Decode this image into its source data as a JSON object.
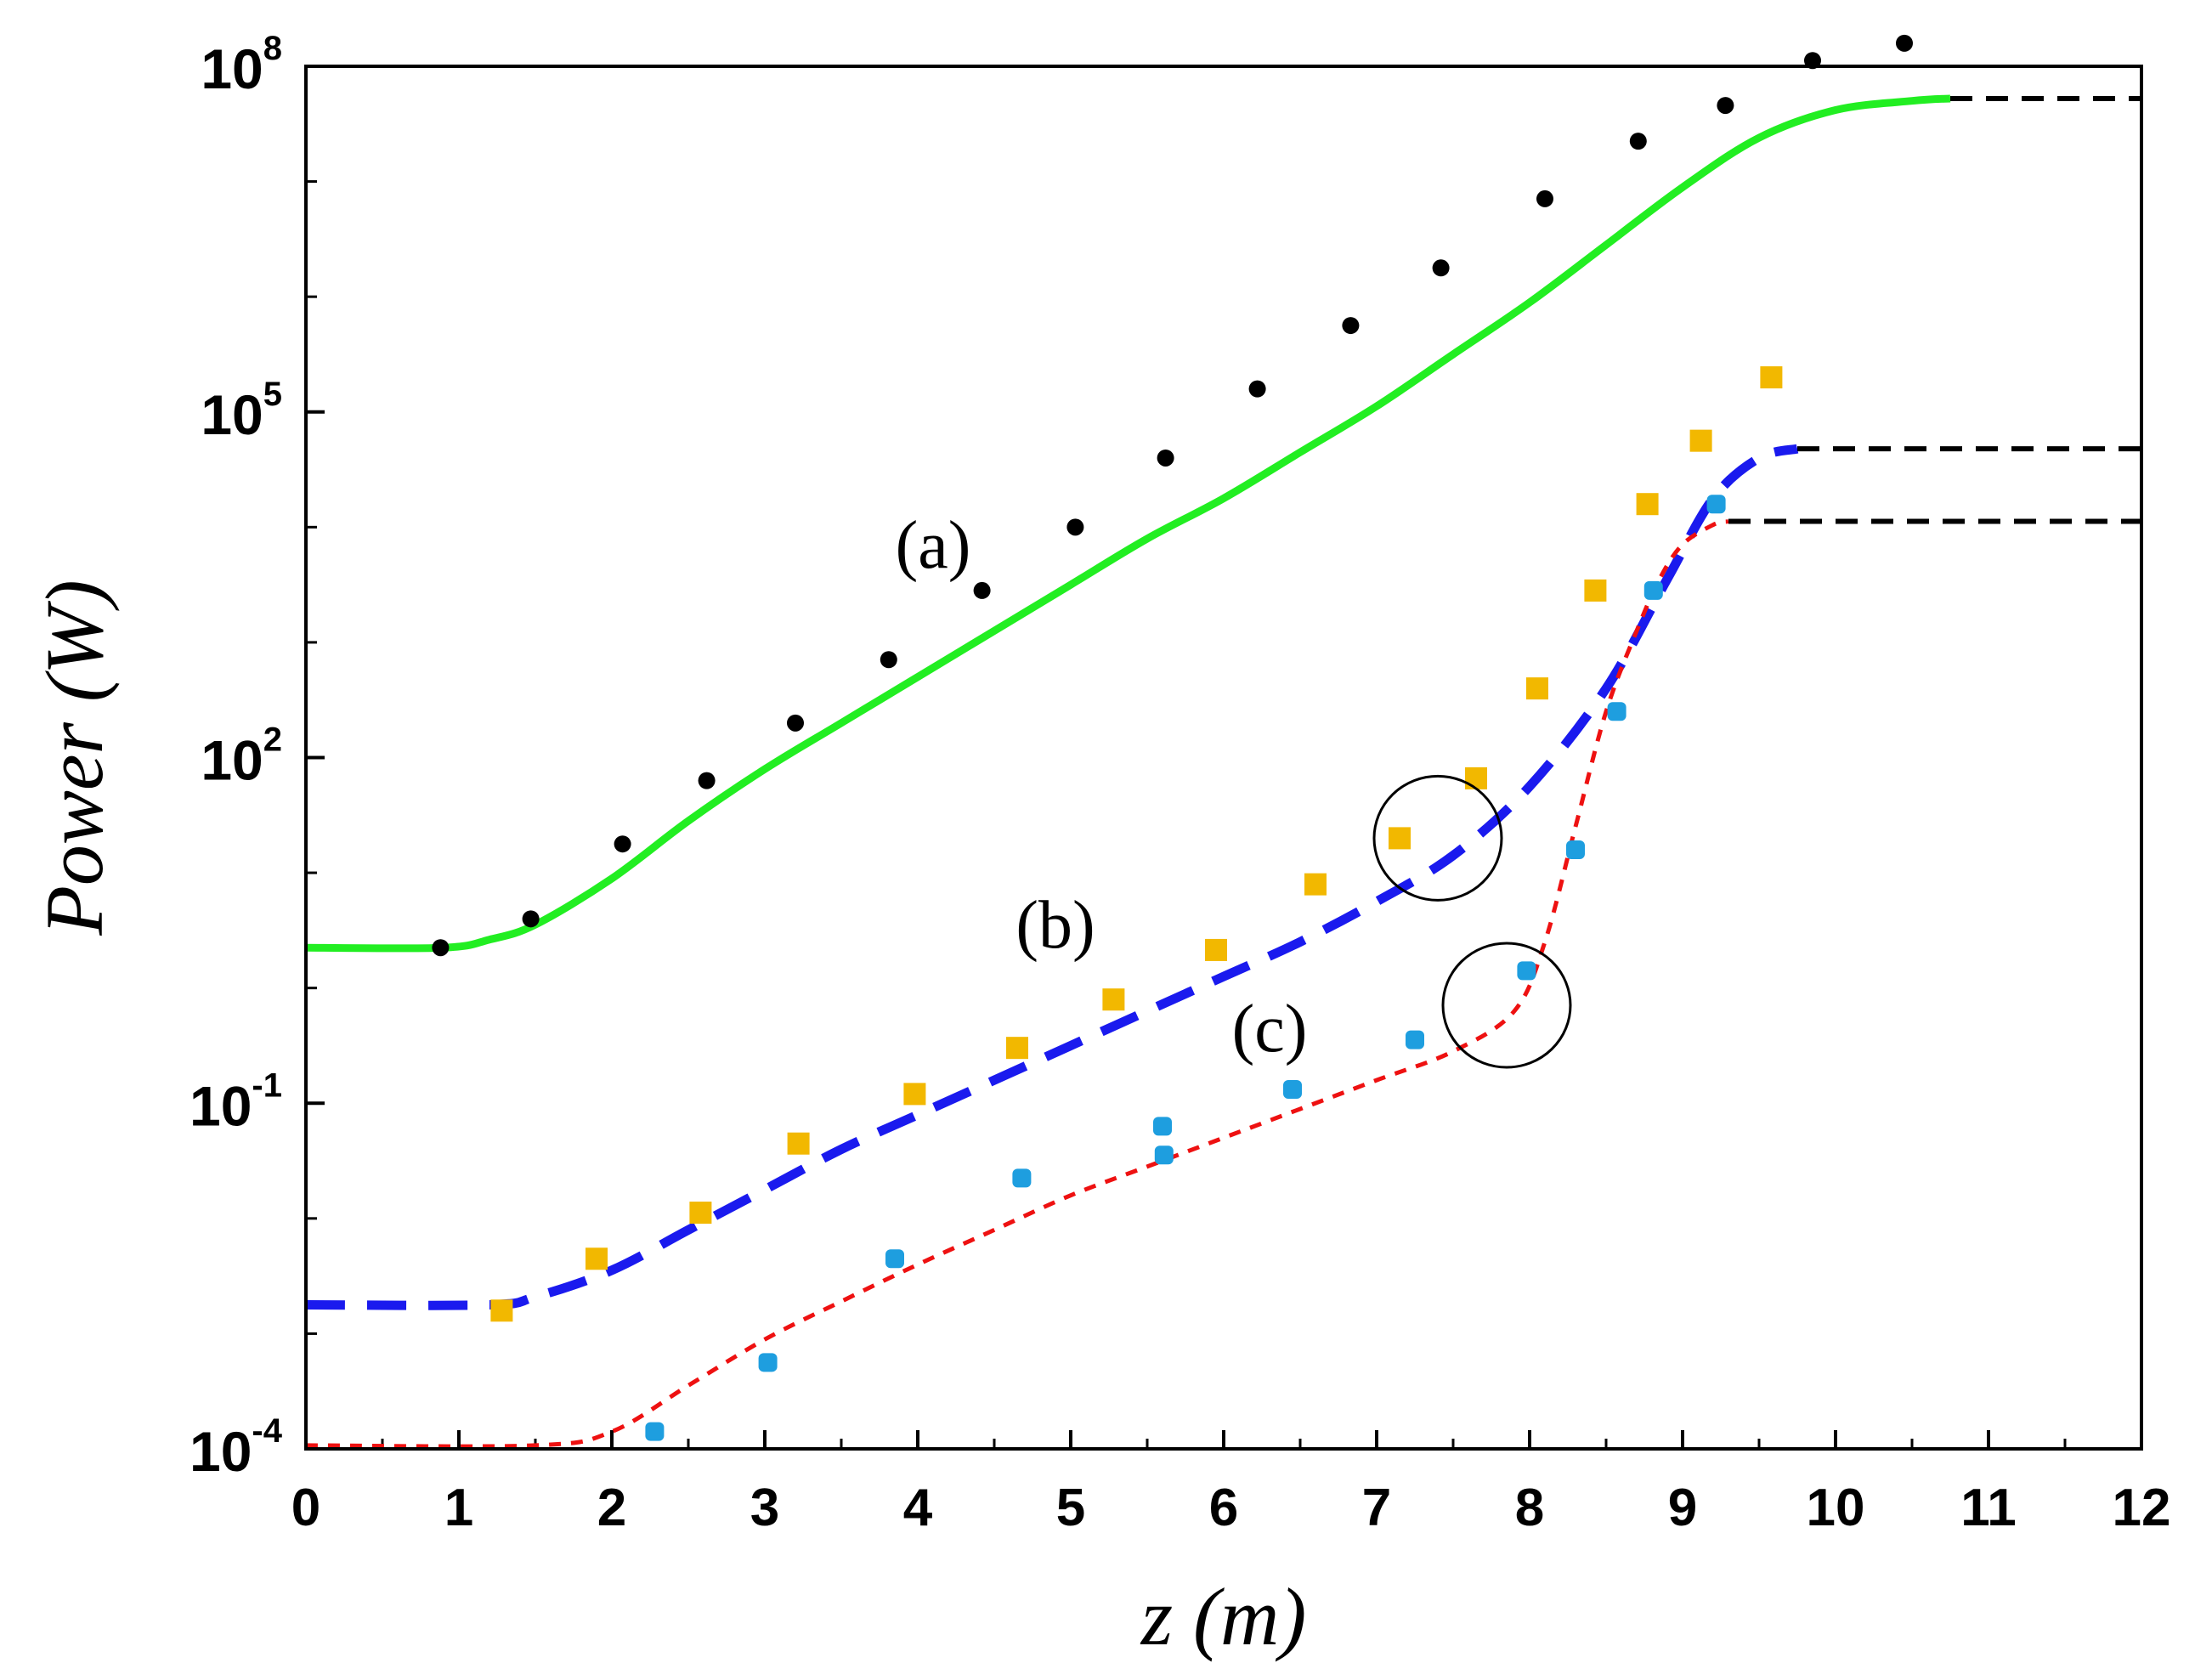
{
  "chart_data": {
    "type": "line",
    "xlabel": "z (m)",
    "ylabel": "Power (W)",
    "xlim": [
      0,
      12
    ],
    "ylim_log10": [
      -4,
      8
    ],
    "yscale": "log",
    "x_ticks": [
      0,
      1,
      2,
      3,
      4,
      5,
      6,
      7,
      8,
      9,
      10,
      11,
      12
    ],
    "y_ticks": [
      {
        "base": "10",
        "exp": "8",
        "value_log10": 8
      },
      {
        "base": "10",
        "exp": "5",
        "value_log10": 5
      },
      {
        "base": "10",
        "exp": "2",
        "value_log10": 2
      },
      {
        "base": "10",
        "exp": "-1",
        "value_log10": -1
      },
      {
        "base": "10",
        "exp": "-4",
        "value_log10": -4
      }
    ],
    "annotations": [
      {
        "text": "(a)",
        "x": 4.1,
        "log10y": 3.65
      },
      {
        "text": "(b)",
        "x": 4.9,
        "log10y": 0.35
      },
      {
        "text": "(c)",
        "x": 6.3,
        "log10y": -0.55
      }
    ],
    "circles": [
      {
        "x": 7.4,
        "log10y": 1.3
      },
      {
        "x": 7.85,
        "log10y": -0.15
      }
    ],
    "series": [
      {
        "name": "(a)",
        "style": "solid",
        "color": "#22ee22",
        "curve": [
          [
            0,
            0.35
          ],
          [
            0.9,
            0.35
          ],
          [
            1.2,
            0.42
          ],
          [
            1.5,
            0.55
          ],
          [
            2.0,
            0.95
          ],
          [
            2.5,
            1.45
          ],
          [
            3.0,
            1.9
          ],
          [
            3.5,
            2.3
          ],
          [
            4.0,
            2.7
          ],
          [
            4.5,
            3.1
          ],
          [
            5.0,
            3.5
          ],
          [
            5.5,
            3.9
          ],
          [
            6.0,
            4.25
          ],
          [
            6.5,
            4.65
          ],
          [
            7.0,
            5.05
          ],
          [
            7.5,
            5.5
          ],
          [
            8.0,
            5.95
          ],
          [
            8.5,
            6.45
          ],
          [
            9.0,
            6.95
          ],
          [
            9.5,
            7.38
          ],
          [
            10.0,
            7.62
          ],
          [
            10.5,
            7.7
          ],
          [
            10.75,
            7.72
          ]
        ],
        "markers_color": "#000000",
        "markers": [
          [
            0.88,
            0.35
          ],
          [
            1.47,
            0.6
          ],
          [
            2.07,
            1.25
          ],
          [
            2.62,
            1.8
          ],
          [
            3.2,
            2.3
          ],
          [
            3.81,
            2.85
          ],
          [
            4.42,
            3.45
          ],
          [
            5.03,
            4.0
          ],
          [
            5.62,
            4.6
          ],
          [
            6.22,
            5.2
          ],
          [
            6.83,
            5.75
          ],
          [
            7.42,
            6.25
          ],
          [
            8.1,
            6.85
          ],
          [
            8.71,
            7.35
          ],
          [
            9.28,
            7.66
          ],
          [
            9.85,
            8.05
          ],
          [
            10.45,
            8.2
          ]
        ],
        "extension": [
          [
            10.75,
            7.72
          ],
          [
            12,
            7.72
          ]
        ]
      },
      {
        "name": "(b)",
        "style": "dashed",
        "color": "#1a1aee",
        "curve": [
          [
            0,
            -2.75
          ],
          [
            1.2,
            -2.75
          ],
          [
            1.5,
            -2.68
          ],
          [
            2.0,
            -2.45
          ],
          [
            2.5,
            -2.1
          ],
          [
            3.0,
            -1.75
          ],
          [
            3.5,
            -1.4
          ],
          [
            4.0,
            -1.1
          ],
          [
            4.5,
            -0.8
          ],
          [
            5.0,
            -0.5
          ],
          [
            5.5,
            -0.2
          ],
          [
            6.0,
            0.1
          ],
          [
            6.5,
            0.4
          ],
          [
            7.0,
            0.75
          ],
          [
            7.5,
            1.15
          ],
          [
            8.0,
            1.75
          ],
          [
            8.5,
            2.6
          ],
          [
            8.9,
            3.55
          ],
          [
            9.2,
            4.25
          ],
          [
            9.5,
            4.6
          ],
          [
            9.75,
            4.68
          ]
        ],
        "markers_color": "#f2b800",
        "markers": [
          [
            1.28,
            -2.8
          ],
          [
            1.9,
            -2.35
          ],
          [
            2.58,
            -1.95
          ],
          [
            3.22,
            -1.35
          ],
          [
            3.98,
            -0.92
          ],
          [
            4.65,
            -0.52
          ],
          [
            5.28,
            -0.1
          ],
          [
            5.95,
            0.33
          ],
          [
            6.6,
            0.9
          ],
          [
            7.15,
            1.3
          ],
          [
            7.65,
            1.82
          ],
          [
            8.05,
            2.6
          ],
          [
            8.43,
            3.45
          ],
          [
            8.77,
            4.2
          ],
          [
            9.12,
            4.75
          ],
          [
            9.58,
            5.3
          ]
        ],
        "extension": [
          [
            9.75,
            4.68
          ],
          [
            12,
            4.68
          ]
        ]
      },
      {
        "name": "(c)",
        "style": "dotted",
        "color": "#ee1111",
        "curve": [
          [
            0,
            -3.97
          ],
          [
            1.5,
            -3.97
          ],
          [
            2.0,
            -3.85
          ],
          [
            2.5,
            -3.45
          ],
          [
            3.0,
            -3.05
          ],
          [
            3.5,
            -2.72
          ],
          [
            4.0,
            -2.4
          ],
          [
            4.5,
            -2.1
          ],
          [
            5.0,
            -1.8
          ],
          [
            5.5,
            -1.55
          ],
          [
            6.0,
            -1.3
          ],
          [
            6.5,
            -1.05
          ],
          [
            7.0,
            -0.8
          ],
          [
            7.5,
            -0.55
          ],
          [
            7.9,
            -0.2
          ],
          [
            8.1,
            0.4
          ],
          [
            8.3,
            1.4
          ],
          [
            8.5,
            2.4
          ],
          [
            8.7,
            3.1
          ],
          [
            8.85,
            3.55
          ],
          [
            9.0,
            3.85
          ],
          [
            9.2,
            4.02
          ],
          [
            9.3,
            4.05
          ]
        ],
        "markers_color": "#1e9edf",
        "markers": [
          [
            2.28,
            -3.85
          ],
          [
            3.02,
            -3.25
          ],
          [
            3.85,
            -2.35
          ],
          [
            4.68,
            -1.65
          ],
          [
            5.6,
            -1.2
          ],
          [
            5.61,
            -1.45
          ],
          [
            6.45,
            -0.88
          ],
          [
            7.25,
            -0.45
          ],
          [
            7.98,
            0.15
          ],
          [
            8.3,
            1.2
          ],
          [
            8.57,
            2.4
          ],
          [
            8.81,
            3.45
          ],
          [
            9.22,
            4.2
          ]
        ],
        "extension": [
          [
            9.3,
            4.05
          ],
          [
            12,
            4.05
          ]
        ]
      }
    ]
  }
}
